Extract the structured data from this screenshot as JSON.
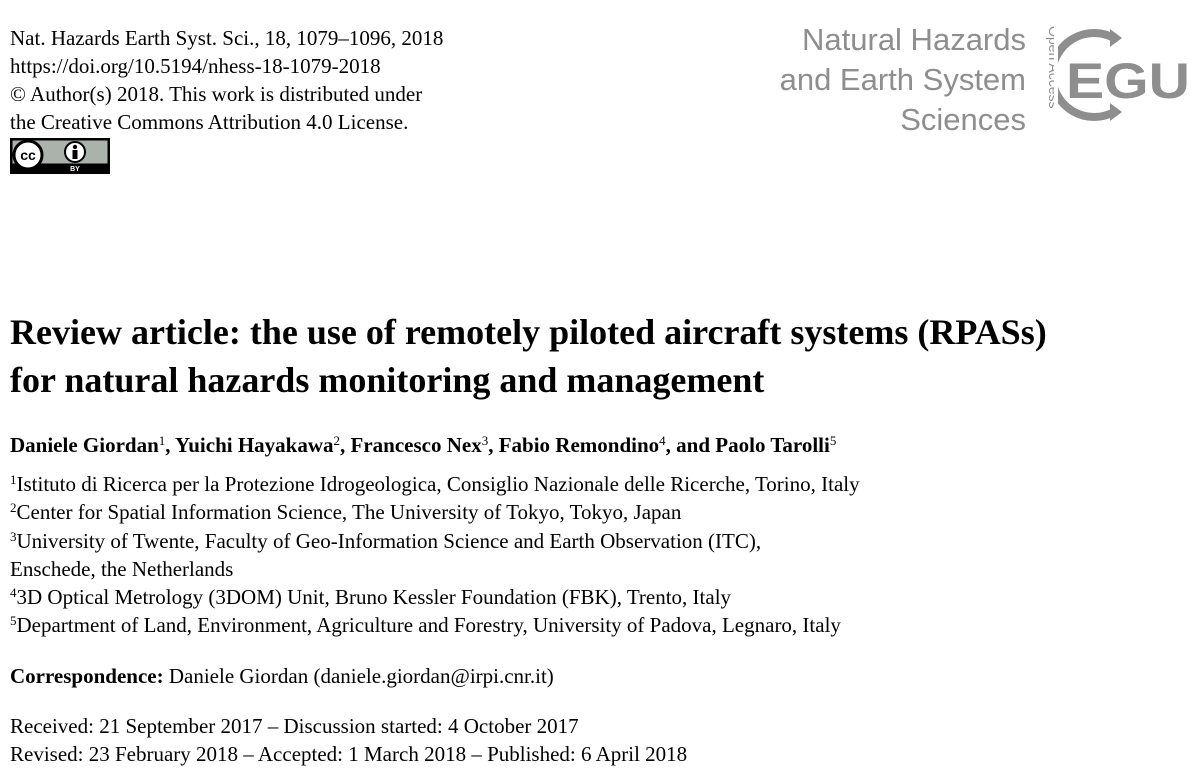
{
  "citation": {
    "journal_line": "Nat. Hazards Earth Syst. Sci., 18, 1079–1096, 2018",
    "doi": "https://doi.org/10.5194/nhess-18-1079-2018",
    "copyright_line1": "© Author(s) 2018. This work is distributed under",
    "copyright_line2": "the Creative Commons Attribution 4.0 License.",
    "license_badge": "cc-by-icon"
  },
  "journal": {
    "name_line1": "Natural Hazards",
    "name_line2": "and Earth System",
    "name_line3": "Sciences",
    "open_access": "Open Access",
    "publisher_logo": "EGU",
    "logo_color": "#8e8e8e"
  },
  "article": {
    "title_line1": "Review article: the use of remotely piloted aircraft systems (RPASs)",
    "title_line2": "for natural hazards monitoring and management"
  },
  "authors": [
    {
      "name": "Daniele Giordan",
      "sup": "1",
      "sep": ", "
    },
    {
      "name": "Yuichi Hayakawa",
      "sup": "2",
      "sep": ", "
    },
    {
      "name": "Francesco Nex",
      "sup": "3",
      "sep": ", "
    },
    {
      "name": "Fabio Remondino",
      "sup": "4",
      "sep": ", and "
    },
    {
      "name": "Paolo Tarolli",
      "sup": "5",
      "sep": ""
    }
  ],
  "affiliations": [
    {
      "sup": "1",
      "text": "Istituto di Ricerca per la Protezione Idrogeologica, Consiglio Nazionale delle Ricerche, Torino, Italy"
    },
    {
      "sup": "2",
      "text": "Center for Spatial Information Science, The University of Tokyo, Tokyo, Japan"
    },
    {
      "sup": "3",
      "text": "University of Twente, Faculty of Geo-Information Science and Earth Observation (ITC),",
      "cont": "Enschede, the Netherlands"
    },
    {
      "sup": "4",
      "text": "3D Optical Metrology (3DOM) Unit, Bruno Kessler Foundation (FBK), Trento, Italy"
    },
    {
      "sup": "5",
      "text": "Department of Land, Environment, Agriculture and Forestry, University of Padova, Legnaro, Italy"
    }
  ],
  "correspondence": {
    "label": "Correspondence:",
    "value": "Daniele Giordan (daniele.giordan@irpi.cnr.it)"
  },
  "dates": {
    "line1": "Received: 21 September 2017 – Discussion started: 4 October 2017",
    "line2": "Revised: 23 February 2018 – Accepted: 1 March 2018 – Published: 6 April 2018"
  }
}
